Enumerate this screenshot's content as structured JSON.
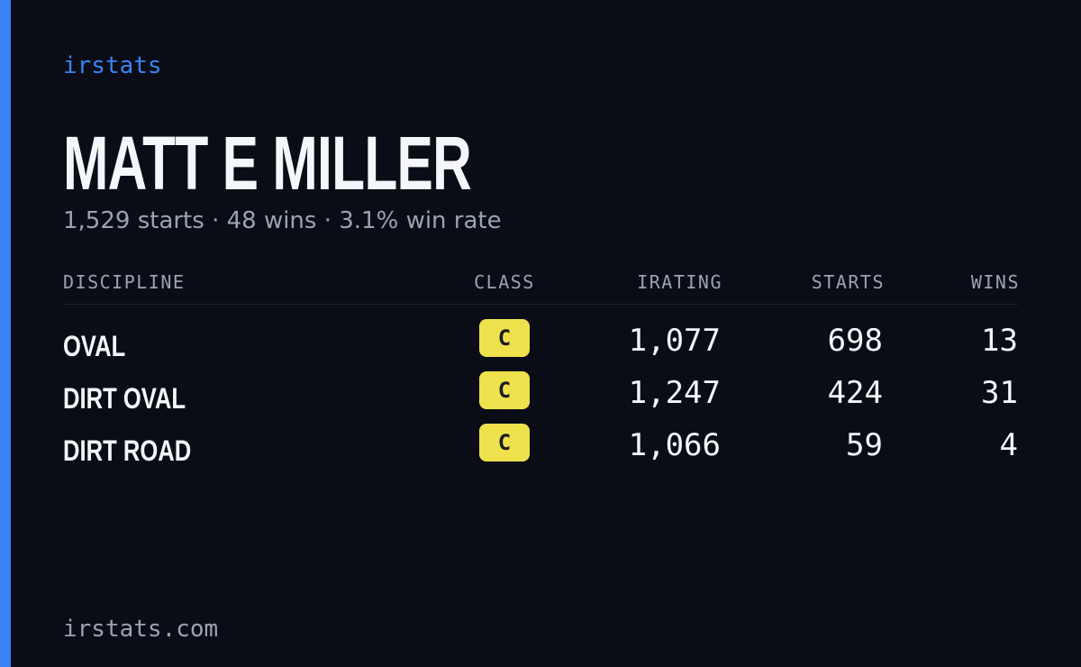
{
  "brand": "irstats",
  "driver": {
    "name": "MATT E MILLER",
    "summary": "1,529 starts · 48 wins · 3.1% win rate"
  },
  "table": {
    "headers": [
      "DISCIPLINE",
      "CLASS",
      "IRATING",
      "STARTS",
      "WINS"
    ],
    "rows": [
      [
        "OVAL",
        "C",
        "1,077",
        "698",
        "13"
      ],
      [
        "DIRT OVAL",
        "C",
        "1,247",
        "424",
        "31"
      ],
      [
        "DIRT ROAD",
        "C",
        "1,066",
        "59",
        "4"
      ]
    ]
  },
  "footer": "irstats.com"
}
